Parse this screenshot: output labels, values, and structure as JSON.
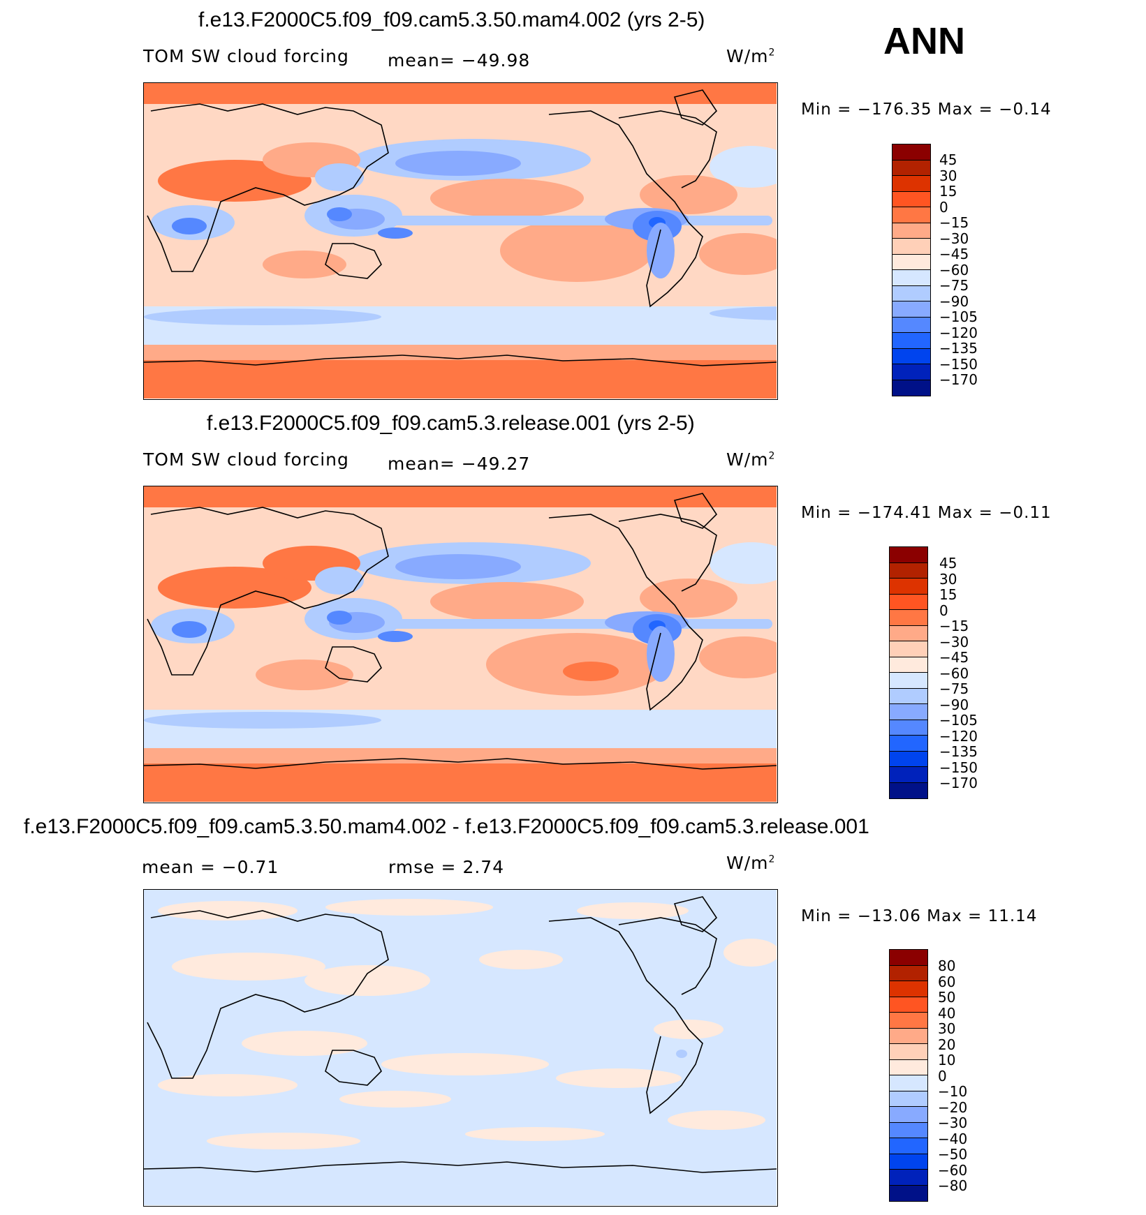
{
  "header": {
    "season": "ANN"
  },
  "colors": {
    "scale": [
      "#8B0000",
      "#B22200",
      "#DD3300",
      "#FF5522",
      "#FF7744",
      "#FFAA88",
      "#FFD0B8",
      "#FFEADD",
      "#D6E7FF",
      "#B0CCFF",
      "#88AAFF",
      "#5588FF",
      "#2266FF",
      "#0044EE",
      "#0022BB",
      "#001188"
    ]
  },
  "panels": [
    {
      "title": "f.e13.F2000C5.f09_f09.cam5.3.50.mam4.002 (yrs 2-5)",
      "left_label": "TOM SW cloud forcing",
      "mid_label": "mean= −49.98",
      "unit": "W/m",
      "unit_exp": "2",
      "minmax": "Min = −176.35 Max = −0.14",
      "levels": [
        "45",
        "30",
        "15",
        "0",
        "−15",
        "−30",
        "−45",
        "−60",
        "−75",
        "−90",
        "−105",
        "−120",
        "−135",
        "−150",
        "−170"
      ]
    },
    {
      "title": "f.e13.F2000C5.f09_f09.cam5.3.release.001 (yrs 2-5)",
      "left_label": "TOM SW cloud forcing",
      "mid_label": "mean= −49.27",
      "unit": "W/m",
      "unit_exp": "2",
      "minmax": "Min = −174.41 Max = −0.11",
      "levels": [
        "45",
        "30",
        "15",
        "0",
        "−15",
        "−30",
        "−45",
        "−60",
        "−75",
        "−90",
        "−105",
        "−120",
        "−135",
        "−150",
        "−170"
      ]
    },
    {
      "title": "f.e13.F2000C5.f09_f09.cam5.3.50.mam4.002 - f.e13.F2000C5.f09_f09.cam5.3.release.001",
      "left_label": "mean = −0.71",
      "mid_label": "rmse = 2.74",
      "unit": "W/m",
      "unit_exp": "2",
      "minmax": "Min = −13.06 Max = 11.14",
      "levels": [
        "80",
        "60",
        "50",
        "40",
        "30",
        "20",
        "10",
        "0",
        "−10",
        "−20",
        "−30",
        "−40",
        "−50",
        "−60",
        "−80"
      ]
    }
  ],
  "chart_data": [
    {
      "type": "heatmap",
      "title": "f.e13.F2000C5.f09_f09.cam5.3.50.mam4.002 (yrs 2-5)",
      "variable": "TOM SW cloud forcing",
      "units": "W/m2",
      "season": "ANN",
      "mean": -49.98,
      "min": -176.35,
      "max": -0.14,
      "contour_levels": [
        45,
        30,
        15,
        0,
        -15,
        -30,
        -45,
        -60,
        -75,
        -90,
        -105,
        -120,
        -135,
        -150,
        -170
      ]
    },
    {
      "type": "heatmap",
      "title": "f.e13.F2000C5.f09_f09.cam5.3.release.001 (yrs 2-5)",
      "variable": "TOM SW cloud forcing",
      "units": "W/m2",
      "season": "ANN",
      "mean": -49.27,
      "min": -174.41,
      "max": -0.11,
      "contour_levels": [
        45,
        30,
        15,
        0,
        -15,
        -30,
        -45,
        -60,
        -75,
        -90,
        -105,
        -120,
        -135,
        -150,
        -170
      ]
    },
    {
      "type": "heatmap",
      "title": "f.e13.F2000C5.f09_f09.cam5.3.50.mam4.002 - f.e13.F2000C5.f09_f09.cam5.3.release.001",
      "units": "W/m2",
      "mean": -0.71,
      "rmse": 2.74,
      "min": -13.06,
      "max": 11.14,
      "contour_levels": [
        80,
        60,
        50,
        40,
        30,
        20,
        10,
        0,
        -10,
        -20,
        -30,
        -40,
        -50,
        -60,
        -80
      ]
    }
  ]
}
